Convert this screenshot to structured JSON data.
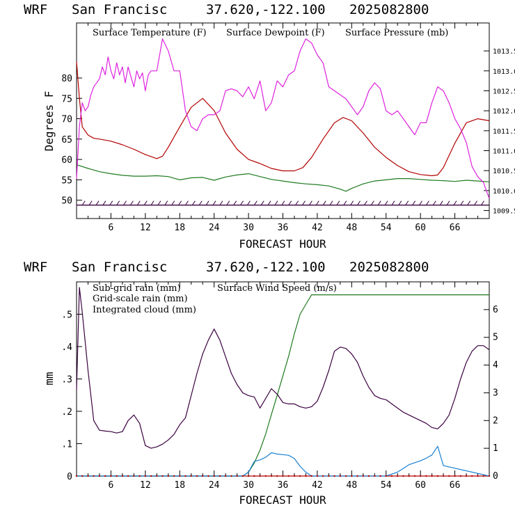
{
  "colors": {
    "temperature": "#b30000",
    "dewpoint": "#1e7a1e",
    "pressure": "#dd22dd",
    "wind": "#3a0040",
    "subgrid_rain": "#b30000",
    "grid_rain": "#1e7a1e",
    "cloud": "#1a7fd0"
  },
  "chart_data": [
    {
      "type": "line",
      "header": {
        "model": "WRF",
        "station": "San Francisc",
        "coords": "37.620,-122.100",
        "date": "2025082800"
      },
      "xlabel": "FORECAST HOUR",
      "ylabel": "Degrees F",
      "xlim": [
        0,
        72
      ],
      "ylim": [
        45.5,
        93.5
      ],
      "xticks": [
        "6",
        "12",
        "18",
        "24",
        "30",
        "36",
        "42",
        "48",
        "54",
        "60",
        "66"
      ],
      "yticks": [
        "50",
        "55",
        "60",
        "65",
        "70",
        "75",
        "80"
      ],
      "y2lim": [
        1009.3,
        1014.2
      ],
      "y2ticks": [
        "1009.5",
        "1010.0",
        "1010.5",
        "1011.0",
        "1011.5",
        "1012.0",
        "1012.5",
        "1013.0",
        "1013.5"
      ],
      "legend_position": "top",
      "series": [
        {
          "name": "Surface Temperature (F)",
          "axis": "left",
          "x": [
            0,
            0.5,
            1,
            2,
            3,
            4,
            6,
            8,
            10,
            12,
            14,
            15,
            16,
            18,
            20,
            22,
            24,
            26,
            28,
            30,
            32,
            34,
            36,
            38,
            39.5,
            41,
            43,
            45,
            46.5,
            48,
            50,
            52,
            54,
            56,
            58,
            60,
            62,
            63,
            64,
            66,
            68,
            70,
            72
          ],
          "y": [
            84,
            75,
            68,
            66,
            65.2,
            65,
            64.5,
            63.6,
            62.5,
            61.2,
            60.2,
            60.8,
            63,
            68,
            72.8,
            75,
            72,
            66.5,
            62.5,
            60,
            59,
            57.8,
            57.2,
            57.2,
            58,
            60.5,
            65,
            69,
            70.3,
            69.5,
            66.5,
            63,
            60.5,
            58.5,
            57,
            56.3,
            56,
            56.2,
            58,
            64,
            69,
            70,
            69.5
          ]
        },
        {
          "name": "Surface Dewpoint (F)",
          "axis": "left",
          "x": [
            0,
            2,
            4,
            6,
            8,
            10,
            12,
            14,
            16,
            18,
            20,
            22,
            24,
            26,
            28,
            30,
            32,
            34,
            36,
            38,
            40,
            42,
            44,
            46,
            47,
            48,
            50,
            52,
            54,
            56,
            58,
            60,
            62,
            64,
            66,
            68,
            70,
            72
          ],
          "y": [
            58.7,
            57.8,
            57,
            56.5,
            56.1,
            55.9,
            55.9,
            56,
            55.8,
            55,
            55.5,
            55.6,
            54.9,
            55.7,
            56.2,
            56.5,
            55.8,
            55.1,
            54.7,
            54.3,
            54,
            53.8,
            53.5,
            52.7,
            52.2,
            52.9,
            54,
            54.7,
            55,
            55.3,
            55.3,
            55.1,
            54.9,
            54.8,
            54.6,
            54.9,
            54.7,
            54.5
          ]
        },
        {
          "name": "Surface Pressure (mb)",
          "axis": "right",
          "x": [
            0,
            0.5,
            1,
            1.5,
            2,
            2.5,
            3,
            4,
            4.5,
            5,
            5.5,
            6,
            6.5,
            7,
            7.5,
            8,
            8.5,
            9,
            9.5,
            10,
            10.5,
            11,
            11.5,
            12,
            12.5,
            13,
            14,
            15,
            16,
            17,
            18,
            19,
            20,
            21,
            22,
            23,
            24,
            25,
            26,
            27,
            28,
            29,
            30,
            31,
            32,
            33,
            34,
            35,
            36,
            37,
            38,
            39,
            40,
            41,
            42,
            43,
            44,
            45,
            46,
            47,
            48,
            49,
            50,
            51,
            52,
            53,
            54,
            55,
            56,
            57,
            58,
            59,
            60,
            61,
            62,
            63,
            64,
            65,
            66,
            67,
            68,
            69,
            70,
            71,
            72
          ],
          "y": [
            1010.3,
            1011.6,
            1012.2,
            1012.0,
            1012.1,
            1012.4,
            1012.6,
            1012.8,
            1013.1,
            1012.9,
            1013.35,
            1013.0,
            1012.8,
            1013.2,
            1012.9,
            1013.1,
            1012.7,
            1013.1,
            1012.85,
            1012.6,
            1013.0,
            1012.8,
            1012.95,
            1012.5,
            1012.9,
            1013.0,
            1013.0,
            1013.8,
            1013.5,
            1013.0,
            1013.0,
            1012.0,
            1011.6,
            1011.5,
            1011.8,
            1011.9,
            1011.9,
            1012.0,
            1012.5,
            1012.55,
            1012.5,
            1012.35,
            1012.6,
            1012.3,
            1012.75,
            1012.0,
            1012.2,
            1012.75,
            1012.6,
            1012.9,
            1013.0,
            1013.5,
            1013.8,
            1013.7,
            1013.4,
            1013.2,
            1012.6,
            1012.5,
            1012.4,
            1012.3,
            1012.1,
            1011.9,
            1012.1,
            1012.5,
            1012.7,
            1012.55,
            1012.0,
            1011.9,
            1012.0,
            1011.8,
            1011.6,
            1011.4,
            1011.7,
            1011.7,
            1012.2,
            1012.6,
            1012.5,
            1012.2,
            1011.8,
            1011.55,
            1011.2,
            1010.6,
            1010.35,
            1010.2,
            1009.8
          ]
        },
        {
          "name": "Wind barbs",
          "axis": "left",
          "y_level": 48.8
        }
      ]
    },
    {
      "type": "line",
      "header": {
        "model": "WRF",
        "station": "San Francisc",
        "coords": "37.620,-122.100",
        "date": "2025082800"
      },
      "xlabel": "FORECAST HOUR",
      "ylabel": "mm",
      "xlim": [
        0,
        72
      ],
      "ylim": [
        0,
        0.6
      ],
      "xticks": [
        "6",
        "12",
        "18",
        "24",
        "30",
        "36",
        "42",
        "48",
        "54",
        "60",
        "66"
      ],
      "yticks": [
        "0",
        ".1",
        ".2",
        ".3",
        ".4",
        ".5"
      ],
      "y2lim": [
        0,
        7
      ],
      "y2ticks": [
        "0",
        "1",
        "2",
        "3",
        "4",
        "5",
        "6"
      ],
      "legend_position": "top",
      "series": [
        {
          "name": "Sub-grid rain (mm)",
          "axis": "left",
          "x": [
            0,
            72
          ],
          "y": [
            0,
            0
          ]
        },
        {
          "name": "Grid-scale rain (mm)",
          "axis": "left",
          "x": [
            0,
            29,
            30,
            31,
            32,
            33,
            34,
            35,
            36,
            37,
            38,
            39,
            40,
            41,
            42,
            45,
            48,
            54,
            60,
            66,
            72
          ],
          "y": [
            0,
            0,
            0.012,
            0.04,
            0.08,
            0.13,
            0.19,
            0.25,
            0.31,
            0.37,
            0.44,
            0.5,
            0.53,
            0.56,
            0.56,
            0.56,
            0.56,
            0.56,
            0.56,
            0.56,
            0.56
          ]
        },
        {
          "name": "Integrated cloud (mm)",
          "axis": "left",
          "x": [
            0,
            29,
            30,
            31,
            32,
            33,
            34,
            35,
            36,
            37,
            38,
            39,
            40,
            41,
            42,
            54,
            56,
            58,
            60,
            61,
            62,
            63,
            64,
            72
          ],
          "y": [
            0,
            0,
            0.012,
            0.045,
            0.05,
            0.058,
            0.072,
            0.068,
            0.066,
            0.064,
            0.054,
            0.03,
            0.012,
            0,
            0,
            0,
            0.012,
            0.035,
            0.047,
            0.055,
            0.065,
            0.092,
            0.032,
            0
          ]
        },
        {
          "name": "Surface Wind Speed (m/s)",
          "axis": "right",
          "x": [
            0,
            0.5,
            1,
            2,
            3,
            4,
            5,
            6,
            7,
            8,
            9,
            10,
            11,
            12,
            13,
            14,
            15,
            16,
            17,
            18,
            19,
            20,
            21,
            22,
            23,
            24,
            25,
            26,
            27,
            28,
            29,
            30,
            31,
            32,
            33,
            34,
            35,
            36,
            37,
            38,
            39,
            40,
            41,
            42,
            43,
            44,
            45,
            46,
            47,
            48,
            49,
            50,
            51,
            52,
            53,
            54,
            55,
            56,
            57,
            58,
            59,
            60,
            61,
            62,
            63,
            64,
            65,
            66,
            67,
            68,
            69,
            70,
            71,
            72
          ],
          "y": [
            3.1,
            6.8,
            5.9,
            3.8,
            2.0,
            1.65,
            1.62,
            1.6,
            1.55,
            1.6,
            2.0,
            2.2,
            1.9,
            1.1,
            1.0,
            1.05,
            1.15,
            1.3,
            1.5,
            1.85,
            2.1,
            2.9,
            3.7,
            4.4,
            4.9,
            5.3,
            4.9,
            4.3,
            3.7,
            3.3,
            3.0,
            2.9,
            2.85,
            2.45,
            2.8,
            3.15,
            2.95,
            2.65,
            2.6,
            2.6,
            2.5,
            2.45,
            2.5,
            2.7,
            3.2,
            3.8,
            4.5,
            4.65,
            4.6,
            4.4,
            4.1,
            3.6,
            3.2,
            2.9,
            2.8,
            2.75,
            2.6,
            2.45,
            2.3,
            2.2,
            2.1,
            2.0,
            1.9,
            1.75,
            1.7,
            1.9,
            2.2,
            2.8,
            3.5,
            4.1,
            4.5,
            4.7,
            4.7,
            4.55
          ]
        }
      ]
    }
  ]
}
